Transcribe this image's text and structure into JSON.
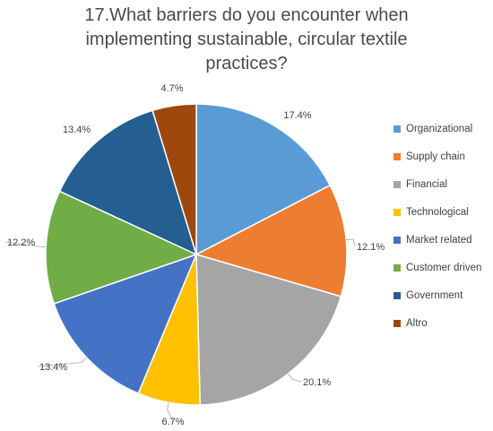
{
  "chart_data": {
    "type": "pie",
    "title_lines": [
      "17.What barriers do you encounter when",
      "implementing sustainable, circular textile",
      "practices?"
    ],
    "legend_position": "right",
    "slices": [
      {
        "label": "Organizational",
        "value": 17.4,
        "display": "17.4%",
        "color": "#5b9bd5"
      },
      {
        "label": "Supply chain",
        "value": 12.1,
        "display": "12.1%",
        "color": "#ed7d31"
      },
      {
        "label": "Financial",
        "value": 20.1,
        "display": "20.1%",
        "color": "#a5a5a5"
      },
      {
        "label": "Technological",
        "value": 6.7,
        "display": "6.7%",
        "color": "#ffc000"
      },
      {
        "label": "Market related",
        "value": 13.4,
        "display": "13.4%",
        "color": "#4472c4"
      },
      {
        "label": "Customer driven",
        "value": 12.2,
        "display": "12.2%",
        "color": "#70ad47"
      },
      {
        "label": "Government",
        "value": 13.4,
        "display": "13.4%",
        "color": "#255e91"
      },
      {
        "label": "Altro",
        "value": 4.7,
        "display": "4.7%",
        "color": "#9e480e"
      }
    ]
  }
}
